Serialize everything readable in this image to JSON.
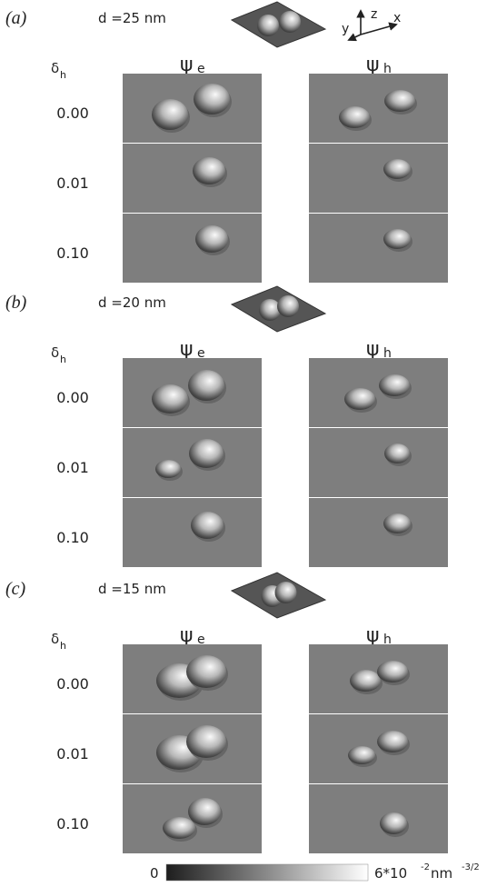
{
  "panels": [
    {
      "label": "(a)",
      "d_label": "d =25 nm",
      "delta": "δ",
      "delta_sub": "h",
      "columns": [
        {
          "symbol": "ψ",
          "sub": "e"
        },
        {
          "symbol": "ψ",
          "sub": "h"
        }
      ],
      "rows": [
        "0.00",
        "0.01",
        "0.10"
      ]
    },
    {
      "label": "(b)",
      "d_label": "d =20 nm",
      "delta": "δ",
      "delta_sub": "h",
      "columns": [
        {
          "symbol": "ψ",
          "sub": "e"
        },
        {
          "symbol": "ψ",
          "sub": "h"
        }
      ],
      "rows": [
        "0.00",
        "0.01",
        "0.10"
      ]
    },
    {
      "label": "(c)",
      "d_label": "d =15 nm",
      "delta": "δ",
      "delta_sub": "h",
      "columns": [
        {
          "symbol": "ψ",
          "sub": "e"
        },
        {
          "symbol": "ψ",
          "sub": "h"
        }
      ],
      "rows": [
        "0.00",
        "0.01",
        "0.10"
      ]
    }
  ],
  "axes_labels": {
    "y": "y",
    "z": "z",
    "x": "x"
  },
  "colorbar": {
    "min_label": "0",
    "max_base": "6*10",
    "max_exp": "-2",
    "unit": " nm",
    "unit_exp": "-3/2"
  }
}
